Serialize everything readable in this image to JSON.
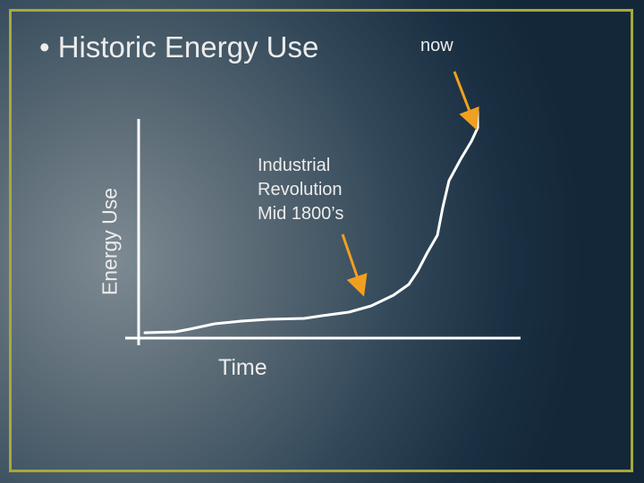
{
  "title": "• Historic Energy Use",
  "labels": {
    "now": "now",
    "industrial_lines": [
      "Industrial",
      "Revolution",
      "Mid 1800’s"
    ],
    "y_axis": "Energy Use",
    "x_axis": "Time"
  },
  "colors": {
    "frame": "#a8a83c",
    "arrow": "#f0a020",
    "curve": "#ffffff",
    "text": "#ececec"
  }
}
